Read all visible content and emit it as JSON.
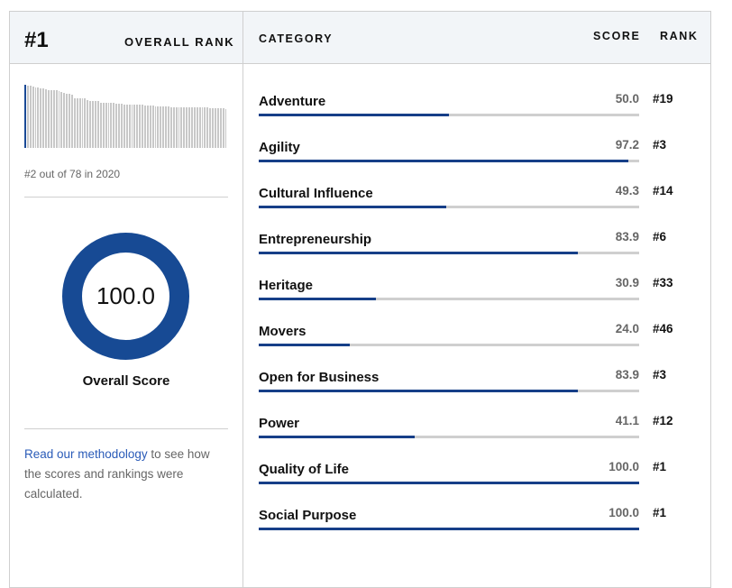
{
  "header": {
    "rank": "#1",
    "overall_rank_label": "OVERALL RANK",
    "category_label": "CATEGORY",
    "score_label": "SCORE",
    "rank_label": "RANK"
  },
  "distribution": {
    "highlight_index": 0,
    "values": [
      100,
      98,
      98,
      97,
      96,
      96,
      95,
      94,
      93,
      92,
      92,
      92,
      91,
      90,
      89,
      87,
      86,
      86,
      85,
      79,
      79,
      79,
      79,
      78,
      76,
      75,
      75,
      75,
      74,
      72,
      72,
      72,
      72,
      72,
      71,
      70,
      70,
      70,
      69,
      69,
      69,
      69,
      68,
      68,
      68,
      68,
      67,
      67,
      67,
      67,
      66,
      66,
      66,
      66,
      66,
      66,
      65,
      65,
      65,
      65,
      65,
      65,
      65,
      65,
      65,
      64,
      64,
      64,
      64,
      64,
      64,
      63,
      63,
      63,
      63,
      63,
      63,
      62
    ]
  },
  "prev_rank_text": "#2 out of 78 in 2020",
  "overall_score": "100.0",
  "overall_score_label": "Overall Score",
  "methodology": {
    "link": "Read our methodology",
    "rest": " to see how the scores and rankings were calculated."
  },
  "categories": [
    {
      "name": "Adventure",
      "score": "50.0",
      "rank": "#19",
      "pct": 50.0
    },
    {
      "name": "Agility",
      "score": "97.2",
      "rank": "#3",
      "pct": 97.2
    },
    {
      "name": "Cultural Influence",
      "score": "49.3",
      "rank": "#14",
      "pct": 49.3
    },
    {
      "name": "Entrepreneurship",
      "score": "83.9",
      "rank": "#6",
      "pct": 83.9
    },
    {
      "name": "Heritage",
      "score": "30.9",
      "rank": "#33",
      "pct": 30.9
    },
    {
      "name": "Movers",
      "score": "24.0",
      "rank": "#46",
      "pct": 24.0
    },
    {
      "name": "Open for Business",
      "score": "83.9",
      "rank": "#3",
      "pct": 83.9
    },
    {
      "name": "Power",
      "score": "41.1",
      "rank": "#12",
      "pct": 41.1
    },
    {
      "name": "Quality of Life",
      "score": "100.0",
      "rank": "#1",
      "pct": 100
    },
    {
      "name": "Social Purpose",
      "score": "100.0",
      "rank": "#1",
      "pct": 100
    }
  ]
}
